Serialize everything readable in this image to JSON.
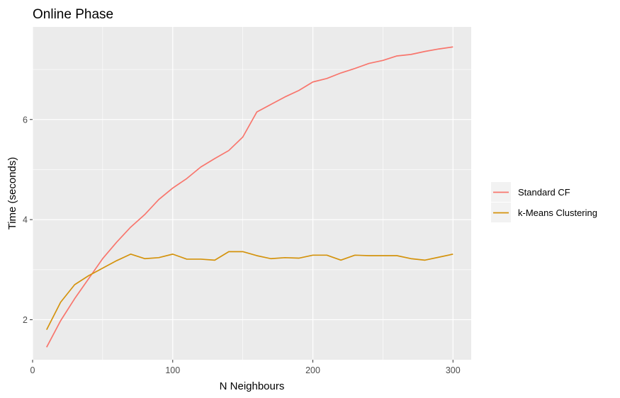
{
  "chart_data": {
    "type": "line",
    "title": "Online Phase",
    "xlabel": "N Neighbours",
    "ylabel": "Time (seconds)",
    "xlim": [
      0,
      313
    ],
    "ylim": [
      1.2,
      7.85
    ],
    "xticks": [
      0,
      100,
      200,
      300
    ],
    "yticks": [
      2,
      4,
      6
    ],
    "xtick_labels": [
      "0",
      "100",
      "200",
      "300"
    ],
    "ytick_labels": [
      "2",
      "4",
      "6"
    ],
    "grid": true,
    "legend_position": "right",
    "x": [
      10,
      20,
      30,
      40,
      50,
      60,
      70,
      80,
      90,
      100,
      110,
      120,
      130,
      140,
      150,
      160,
      170,
      180,
      190,
      200,
      210,
      220,
      230,
      240,
      250,
      260,
      270,
      280,
      290,
      300
    ],
    "series": [
      {
        "name": "Standard CF",
        "color": "#F8766D",
        "values": [
          1.45,
          1.98,
          2.42,
          2.82,
          3.22,
          3.55,
          3.85,
          4.1,
          4.4,
          4.63,
          4.82,
          5.05,
          5.22,
          5.38,
          5.65,
          6.15,
          6.3,
          6.45,
          6.58,
          6.75,
          6.82,
          6.93,
          7.02,
          7.12,
          7.18,
          7.27,
          7.3,
          7.36,
          7.41,
          7.45
        ]
      },
      {
        "name": "k-Means Clustering",
        "color": "#D4930D",
        "values": [
          1.8,
          2.35,
          2.7,
          2.88,
          3.03,
          3.18,
          3.31,
          3.22,
          3.24,
          3.31,
          3.21,
          3.21,
          3.19,
          3.36,
          3.36,
          3.28,
          3.22,
          3.24,
          3.23,
          3.29,
          3.29,
          3.19,
          3.29,
          3.28,
          3.28,
          3.28,
          3.22,
          3.19,
          3.25,
          3.31
        ]
      }
    ]
  }
}
